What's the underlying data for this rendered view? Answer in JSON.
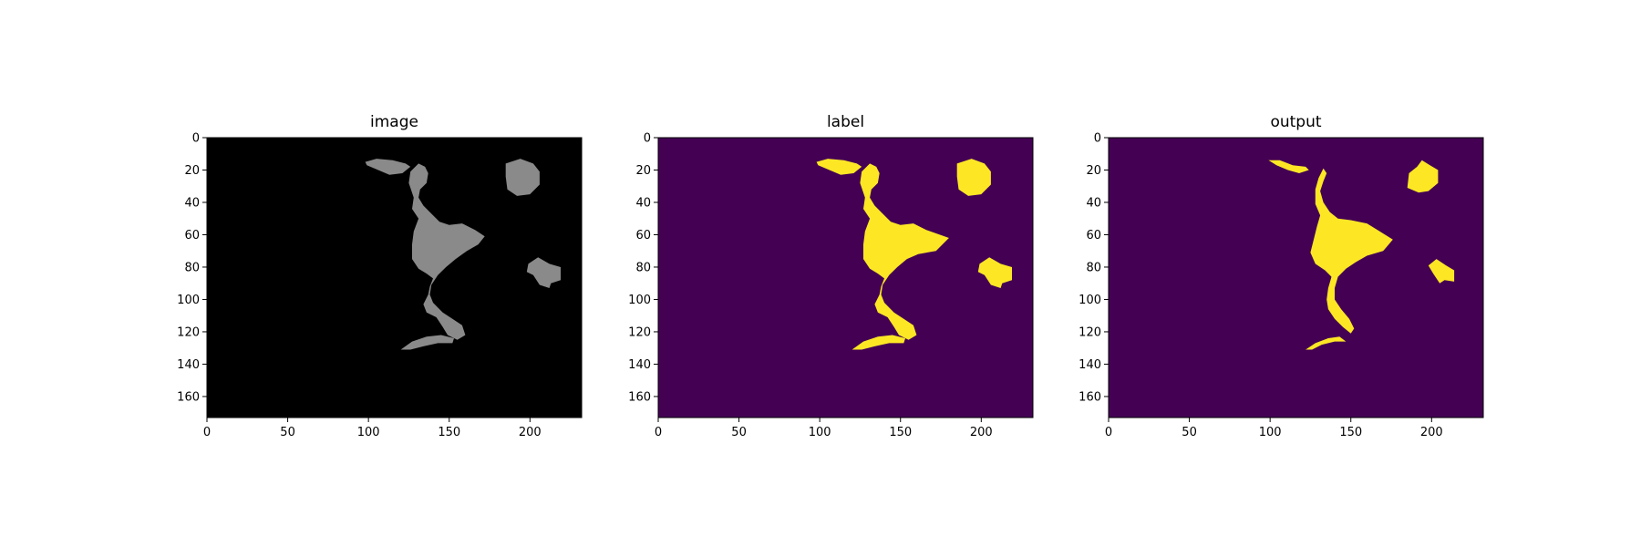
{
  "chart_data": [
    {
      "type": "heatmap",
      "title": "image",
      "colormap": "gray",
      "background_color": "#000000",
      "foreground_color": "#8a8a8a",
      "x_ticks": [
        0,
        50,
        100,
        150,
        200
      ],
      "y_ticks": [
        0,
        20,
        40,
        60,
        80,
        100,
        120,
        140,
        160
      ],
      "xlim": [
        0,
        232
      ],
      "ylim": [
        173,
        0
      ],
      "regions": [
        {
          "name": "upper-crescent",
          "points": [
            [
              98,
              15
            ],
            [
              105,
              13
            ],
            [
              115,
              14
            ],
            [
              123,
              16
            ],
            [
              126,
              18
            ],
            [
              121,
              22
            ],
            [
              113,
              23
            ],
            [
              106,
              20
            ],
            [
              99,
              17
            ]
          ]
        },
        {
          "name": "central-organ",
          "points": [
            [
              131,
              16
            ],
            [
              135,
              18
            ],
            [
              137,
              22
            ],
            [
              136,
              28
            ],
            [
              132,
              32
            ],
            [
              131,
              37
            ],
            [
              134,
              42
            ],
            [
              139,
              47
            ],
            [
              144,
              52
            ],
            [
              150,
              54
            ],
            [
              158,
              53
            ],
            [
              166,
              57
            ],
            [
              172,
              61
            ],
            [
              168,
              66
            ],
            [
              161,
              70
            ],
            [
              154,
              75
            ],
            [
              148,
              80
            ],
            [
              143,
              85
            ],
            [
              139,
              91
            ],
            [
              138,
              97
            ],
            [
              140,
              102
            ],
            [
              146,
              108
            ],
            [
              152,
              112
            ],
            [
              158,
              116
            ],
            [
              160,
              122
            ],
            [
              155,
              125
            ],
            [
              149,
              122
            ],
            [
              146,
              117
            ],
            [
              142,
              111
            ],
            [
              136,
              108
            ],
            [
              134,
              103
            ],
            [
              137,
              97
            ],
            [
              138,
              92
            ],
            [
              140,
              87
            ],
            [
              136,
              84
            ],
            [
              131,
              81
            ],
            [
              127,
              75
            ],
            [
              127,
              66
            ],
            [
              128,
              58
            ],
            [
              131,
              50
            ],
            [
              127,
              44
            ],
            [
              128,
              37
            ],
            [
              125,
              28
            ],
            [
              126,
              21
            ]
          ]
        },
        {
          "name": "right-upper-blob",
          "points": [
            [
              185,
              16
            ],
            [
              194,
              13
            ],
            [
              202,
              16
            ],
            [
              206,
              21
            ],
            [
              206,
              29
            ],
            [
              200,
              35
            ],
            [
              192,
              36
            ],
            [
              186,
              32
            ],
            [
              185,
              24
            ]
          ]
        },
        {
          "name": "right-lower-blob",
          "points": [
            [
              199,
              78
            ],
            [
              205,
              74
            ],
            [
              212,
              78
            ],
            [
              219,
              80
            ],
            [
              219,
              88
            ],
            [
              213,
              90
            ],
            [
              212,
              93
            ],
            [
              206,
              91
            ],
            [
              202,
              85
            ],
            [
              198,
              83
            ]
          ]
        },
        {
          "name": "lower-crescent",
          "points": [
            [
              120,
              131
            ],
            [
              127,
              126
            ],
            [
              136,
              123
            ],
            [
              145,
              122
            ],
            [
              153,
              124
            ],
            [
              152,
              127
            ],
            [
              143,
              127
            ],
            [
              134,
              129
            ],
            [
              126,
              131
            ]
          ]
        }
      ]
    },
    {
      "type": "heatmap",
      "title": "label",
      "colormap": "viridis",
      "background_color": "#440154",
      "foreground_color": "#fde725",
      "x_ticks": [
        0,
        50,
        100,
        150,
        200
      ],
      "y_ticks": [
        0,
        20,
        40,
        60,
        80,
        100,
        120,
        140,
        160
      ],
      "xlim": [
        0,
        232
      ],
      "ylim": [
        173,
        0
      ],
      "regions": [
        {
          "name": "upper-crescent",
          "points": [
            [
              98,
              15
            ],
            [
              105,
              13
            ],
            [
              115,
              14
            ],
            [
              123,
              16
            ],
            [
              126,
              18
            ],
            [
              121,
              22
            ],
            [
              113,
              23
            ],
            [
              106,
              20
            ],
            [
              99,
              17
            ]
          ]
        },
        {
          "name": "central-organ",
          "points": [
            [
              131,
              16
            ],
            [
              135,
              18
            ],
            [
              137,
              22
            ],
            [
              136,
              28
            ],
            [
              132,
              32
            ],
            [
              131,
              37
            ],
            [
              134,
              42
            ],
            [
              139,
              47
            ],
            [
              144,
              52
            ],
            [
              150,
              54
            ],
            [
              158,
              53
            ],
            [
              166,
              57
            ],
            [
              180,
              62
            ],
            [
              172,
              70
            ],
            [
              161,
              72
            ],
            [
              154,
              75
            ],
            [
              148,
              80
            ],
            [
              143,
              85
            ],
            [
              139,
              91
            ],
            [
              138,
              97
            ],
            [
              140,
              102
            ],
            [
              146,
              108
            ],
            [
              152,
              112
            ],
            [
              158,
              116
            ],
            [
              160,
              122
            ],
            [
              155,
              125
            ],
            [
              149,
              122
            ],
            [
              146,
              117
            ],
            [
              142,
              111
            ],
            [
              136,
              108
            ],
            [
              134,
              103
            ],
            [
              137,
              97
            ],
            [
              138,
              92
            ],
            [
              140,
              87
            ],
            [
              136,
              84
            ],
            [
              131,
              81
            ],
            [
              127,
              75
            ],
            [
              127,
              66
            ],
            [
              128,
              58
            ],
            [
              131,
              50
            ],
            [
              127,
              44
            ],
            [
              128,
              37
            ],
            [
              125,
              28
            ],
            [
              126,
              21
            ]
          ]
        },
        {
          "name": "right-upper-blob",
          "points": [
            [
              185,
              16
            ],
            [
              194,
              13
            ],
            [
              202,
              16
            ],
            [
              206,
              21
            ],
            [
              206,
              29
            ],
            [
              200,
              35
            ],
            [
              192,
              36
            ],
            [
              186,
              32
            ],
            [
              185,
              24
            ]
          ]
        },
        {
          "name": "right-lower-blob",
          "points": [
            [
              199,
              78
            ],
            [
              205,
              74
            ],
            [
              212,
              78
            ],
            [
              219,
              80
            ],
            [
              219,
              88
            ],
            [
              213,
              90
            ],
            [
              212,
              93
            ],
            [
              206,
              91
            ],
            [
              202,
              85
            ],
            [
              198,
              83
            ]
          ]
        },
        {
          "name": "lower-crescent",
          "points": [
            [
              120,
              131
            ],
            [
              127,
              126
            ],
            [
              136,
              123
            ],
            [
              145,
              122
            ],
            [
              153,
              124
            ],
            [
              152,
              127
            ],
            [
              143,
              127
            ],
            [
              134,
              129
            ],
            [
              126,
              131
            ]
          ]
        }
      ]
    },
    {
      "type": "heatmap",
      "title": "output",
      "colormap": "viridis",
      "background_color": "#440154",
      "foreground_color": "#fde725",
      "x_ticks": [
        0,
        50,
        100,
        150,
        200
      ],
      "y_ticks": [
        0,
        20,
        40,
        60,
        80,
        100,
        120,
        140,
        160
      ],
      "xlim": [
        0,
        232
      ],
      "ylim": [
        173,
        0
      ],
      "regions": [
        {
          "name": "upper-crescent",
          "points": [
            [
              99,
              14
            ],
            [
              106,
              14
            ],
            [
              114,
              17
            ],
            [
              122,
              18
            ],
            [
              124,
              20
            ],
            [
              118,
              22
            ],
            [
              111,
              20
            ],
            [
              104,
              17
            ]
          ]
        },
        {
          "name": "central-organ",
          "points": [
            [
              133,
              19
            ],
            [
              135,
              22
            ],
            [
              133,
              27
            ],
            [
              131,
              33
            ],
            [
              133,
              40
            ],
            [
              137,
              46
            ],
            [
              142,
              50
            ],
            [
              150,
              51
            ],
            [
              160,
              53
            ],
            [
              168,
              58
            ],
            [
              176,
              63
            ],
            [
              170,
              70
            ],
            [
              160,
              73
            ],
            [
              153,
              77
            ],
            [
              147,
              81
            ],
            [
              142,
              86
            ],
            [
              140,
              93
            ],
            [
              140,
              100
            ],
            [
              144,
              106
            ],
            [
              149,
              112
            ],
            [
              152,
              118
            ],
            [
              150,
              121
            ],
            [
              145,
              117
            ],
            [
              140,
              112
            ],
            [
              136,
              106
            ],
            [
              135,
              100
            ],
            [
              136,
              93
            ],
            [
              138,
              86
            ],
            [
              134,
              82
            ],
            [
              128,
              78
            ],
            [
              125,
              71
            ],
            [
              127,
              63
            ],
            [
              129,
              55
            ],
            [
              131,
              48
            ],
            [
              128,
              41
            ],
            [
              128,
              32
            ],
            [
              130,
              25
            ]
          ]
        },
        {
          "name": "right-upper-blob",
          "points": [
            [
              186,
              22
            ],
            [
              191,
              18
            ],
            [
              194,
              14
            ],
            [
              199,
              17
            ],
            [
              204,
              20
            ],
            [
              204,
              28
            ],
            [
              198,
              33
            ],
            [
              192,
              34
            ],
            [
              185,
              31
            ]
          ]
        },
        {
          "name": "right-lower-blob",
          "points": [
            [
              198,
              79
            ],
            [
              203,
              75
            ],
            [
              209,
              79
            ],
            [
              214,
              82
            ],
            [
              214,
              89
            ],
            [
              208,
              88
            ],
            [
              205,
              90
            ],
            [
              201,
              84
            ]
          ]
        },
        {
          "name": "lower-crescent",
          "points": [
            [
              122,
              131
            ],
            [
              128,
              127
            ],
            [
              136,
              124
            ],
            [
              143,
              123
            ],
            [
              147,
              126
            ],
            [
              140,
              126
            ],
            [
              132,
              128
            ],
            [
              126,
              131
            ]
          ]
        }
      ]
    }
  ]
}
